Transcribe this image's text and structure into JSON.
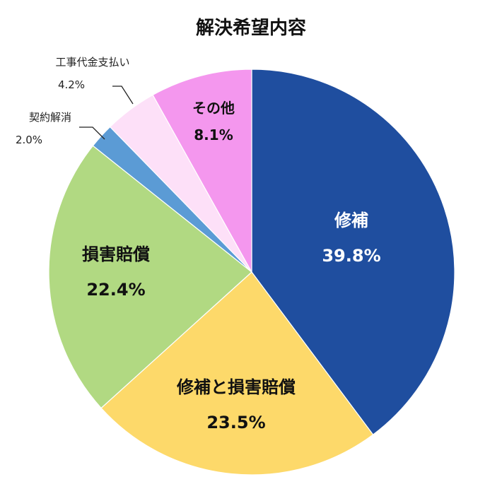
{
  "chart_data": {
    "type": "pie",
    "title": "解決希望内容",
    "slices": [
      {
        "label": "修補",
        "value": 39.8,
        "value_label": "39.8%",
        "color": "#1f4e9f",
        "text_color": "#ffffff"
      },
      {
        "label": "修補と損害賠償",
        "value": 23.5,
        "value_label": "23.5%",
        "color": "#fdd96a",
        "text_color": "#111111"
      },
      {
        "label": "損害賠償",
        "value": 22.4,
        "value_label": "22.4%",
        "color": "#b1d982",
        "text_color": "#111111"
      },
      {
        "label": "契約解消",
        "value": 2.0,
        "value_label": "2.0%",
        "color": "#5b9bd5",
        "text_color": "#222222"
      },
      {
        "label": "工事代金支払い",
        "value": 4.2,
        "value_label": "4.2%",
        "color": "#fde0f8",
        "text_color": "#222222"
      },
      {
        "label": "その他",
        "value": 8.1,
        "value_label": "8.1%",
        "color": "#f497ee",
        "text_color": "#111111"
      }
    ],
    "start_angle": "12 o'clock",
    "direction": "clockwise",
    "legend": "none"
  }
}
